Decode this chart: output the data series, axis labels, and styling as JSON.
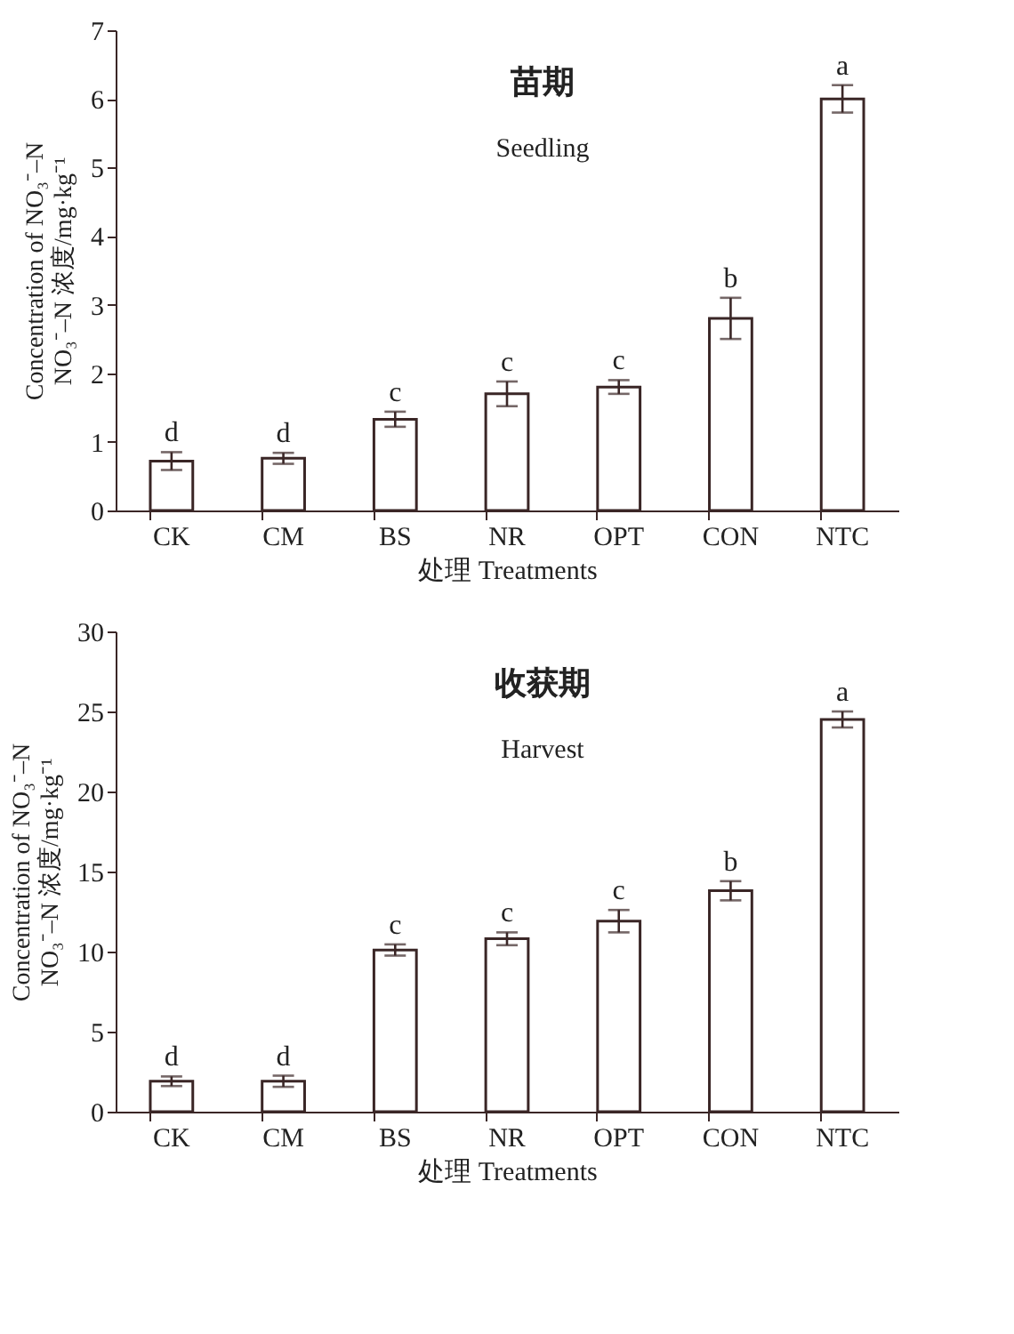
{
  "chart_data": [
    {
      "type": "bar",
      "title": "苗期",
      "subtitle": "Seedling",
      "xlabel": "处理 Treatments",
      "ylabel": "Concentration of NO₃⁻–N\nNO₃⁻–N 浓度/mg·kg⁻¹",
      "categories": [
        "CK",
        "CM",
        "BS",
        "NR",
        "OPT",
        "CON",
        "NTC"
      ],
      "values": [
        0.72,
        0.76,
        1.33,
        1.7,
        1.8,
        2.8,
        6.0
      ],
      "errors": [
        0.13,
        0.08,
        0.11,
        0.18,
        0.1,
        0.3,
        0.2
      ],
      "color": "#ffffff",
      "ylim": [
        0,
        7
      ],
      "yticks": [
        0,
        1,
        2,
        3,
        4,
        5,
        6,
        7
      ],
      "grid": false,
      "annotations": [
        {
          "text": "d",
          "x": "CK",
          "y": 0.85
        },
        {
          "text": "d",
          "x": "CM",
          "y": 0.84
        },
        {
          "text": "c",
          "x": "BS",
          "y": 1.44
        },
        {
          "text": "c",
          "x": "NR",
          "y": 1.88
        },
        {
          "text": "c",
          "x": "OPT",
          "y": 1.9
        },
        {
          "text": "b",
          "x": "CON",
          "y": 3.1
        },
        {
          "text": "a",
          "x": "NTC",
          "y": 6.2
        }
      ]
    },
    {
      "type": "bar",
      "title": "收获期",
      "subtitle": "Harvest",
      "xlabel": "处理 Treatments",
      "ylabel": "Concentration of NO₃⁻–N\nNO₃⁻–N 浓度/mg·kg⁻¹",
      "categories": [
        "CK",
        "CM",
        "BS",
        "NR",
        "OPT",
        "CON",
        "NTC"
      ],
      "values": [
        1.9,
        1.9,
        10.1,
        10.8,
        11.9,
        13.8,
        24.5
      ],
      "errors": [
        0.3,
        0.35,
        0.35,
        0.4,
        0.7,
        0.6,
        0.5
      ],
      "color": "#ffffff",
      "ylim": [
        0,
        30
      ],
      "yticks": [
        0,
        5,
        10,
        15,
        20,
        25,
        30
      ],
      "grid": false,
      "annotations": [
        {
          "text": "d",
          "x": "CK",
          "y": 2.2
        },
        {
          "text": "d",
          "x": "CM",
          "y": 2.25
        },
        {
          "text": "c",
          "x": "BS",
          "y": 10.45
        },
        {
          "text": "c",
          "x": "NR",
          "y": 11.2
        },
        {
          "text": "c",
          "x": "OPT",
          "y": 12.6
        },
        {
          "text": "b",
          "x": "CON",
          "y": 14.4
        },
        {
          "text": "a",
          "x": "NTC",
          "y": 25.0
        }
      ]
    }
  ]
}
